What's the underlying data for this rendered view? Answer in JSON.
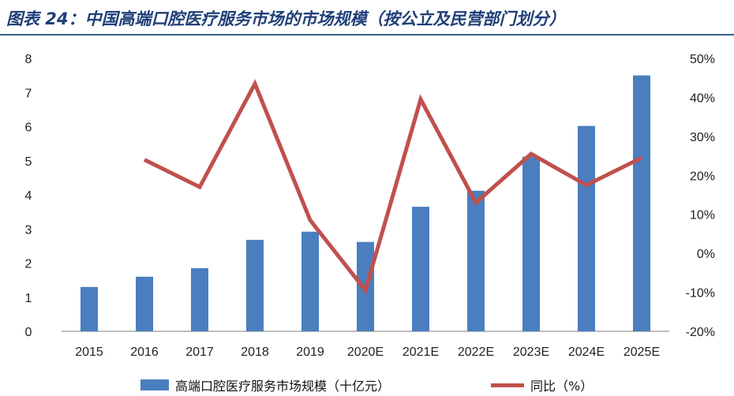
{
  "colors": {
    "bar": "#4a7ebf",
    "line": "#c0504d",
    "title": "#1f3f77"
  },
  "chart_data": {
    "type": "bar",
    "title": "图表 24：中国高端口腔医疗服务市场的市场规模（按公立及民营部门划分）",
    "categories": [
      "2015",
      "2016",
      "2017",
      "2018",
      "2019",
      "2020E",
      "2021E",
      "2022E",
      "2023E",
      "2024E",
      "2025E"
    ],
    "series": [
      {
        "name": "高端口腔医疗服务市场规模（十亿元）",
        "type": "bar",
        "axis": "left",
        "values": [
          1.3,
          1.6,
          1.85,
          2.68,
          2.92,
          2.62,
          3.65,
          4.12,
          5.12,
          6.02,
          7.5
        ]
      },
      {
        "name": "同比（%）",
        "type": "line",
        "axis": "right",
        "values": [
          null,
          24.0,
          17.0,
          43.5,
          8.5,
          -9.5,
          39.5,
          13.0,
          25.5,
          17.5,
          24.5
        ]
      }
    ],
    "left_axis": {
      "min": 0,
      "max": 8,
      "ticks": [
        "0",
        "1",
        "2",
        "3",
        "4",
        "5",
        "6",
        "7",
        "8"
      ]
    },
    "right_axis": {
      "min": -20,
      "max": 50,
      "ticks": [
        "-20%",
        "-10%",
        "0%",
        "10%",
        "20%",
        "30%",
        "40%",
        "50%"
      ]
    },
    "grid": false,
    "legend_position": "bottom"
  }
}
